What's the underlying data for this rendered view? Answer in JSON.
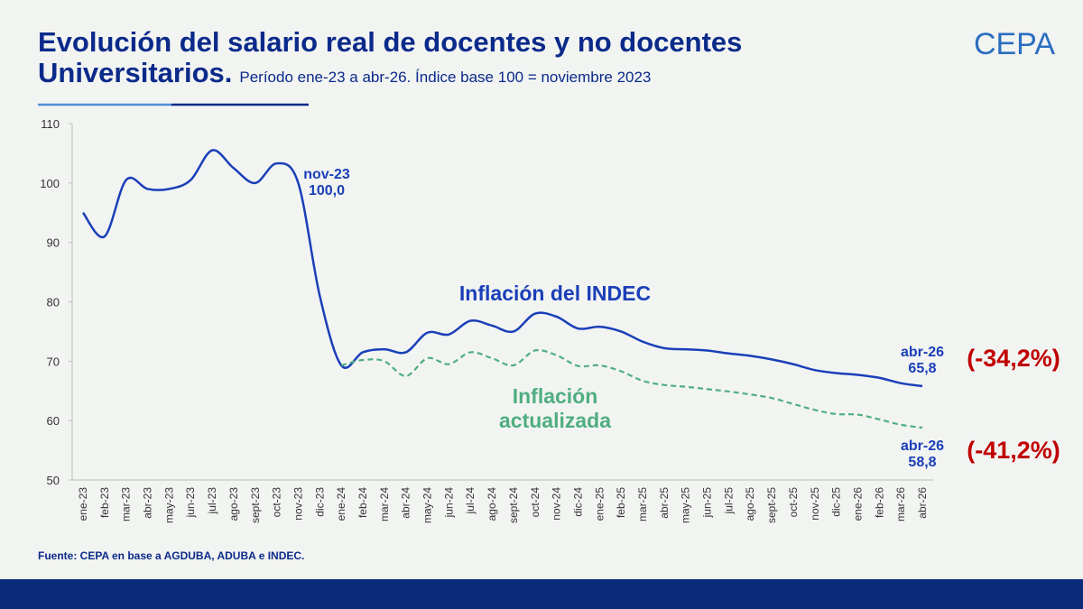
{
  "chart_data": {
    "type": "line",
    "title": "Evolución del salario real de docentes y no docentes",
    "title_line2": "Universitarios.",
    "subtitle": "Período ene-23 a abr-26. Índice base 100 = noviembre 2023",
    "source": "Fuente: CEPA en base a AGDUBA,  ADUBA  e INDEC.",
    "logo": "CEPA",
    "categories": [
      "ene-23",
      "feb-23",
      "mar-23",
      "abr-23",
      "may-23",
      "jun-23",
      "jul-23",
      "ago-23",
      "sept-23",
      "oct-23",
      "nov-23",
      "dic-23",
      "ene-24",
      "feb-24",
      "mar-24",
      "abr-24",
      "may-24",
      "jun-24",
      "jul-24",
      "ago-24",
      "sept-24",
      "oct-24",
      "nov-24",
      "dic-24",
      "ene-25",
      "feb-25",
      "mar-25",
      "abr-25",
      "may-25",
      "jun-25",
      "jul-25",
      "ago-25",
      "sept-25",
      "oct-25",
      "nov-25",
      "dic-25",
      "ene-26",
      "feb-26",
      "mar-26",
      "abr-26"
    ],
    "series": [
      {
        "name": "Inflación del INDEC",
        "color": "#1a3fb8",
        "dashed": false,
        "values": [
          95,
          91,
          100.5,
          99,
          99,
          100.5,
          105.5,
          102.5,
          100,
          103.3,
          100,
          81,
          69.3,
          71.5,
          72,
          71.5,
          74.8,
          74.5,
          76.8,
          76,
          75,
          78,
          77.5,
          75.5,
          75.8,
          75,
          73.3,
          72.2,
          72,
          71.8,
          71.3,
          70.9,
          70.3,
          69.5,
          68.5,
          68,
          67.7,
          67.2,
          66.3,
          65.8
        ]
      },
      {
        "name": "Inflación actualizada",
        "color": "#4fae80",
        "dashed": true,
        "values": [
          null,
          null,
          null,
          null,
          null,
          null,
          null,
          null,
          null,
          null,
          null,
          null,
          69.3,
          70.2,
          70,
          67.5,
          70.5,
          69.5,
          71.5,
          70.5,
          69.3,
          71.8,
          71,
          69.2,
          69.3,
          68.3,
          66.7,
          66,
          65.7,
          65.3,
          64.9,
          64.4,
          63.8,
          62.8,
          61.8,
          61.1,
          61,
          60.2,
          59.3,
          58.8
        ]
      }
    ],
    "annotations": [
      {
        "text": [
          "nov-23",
          "100,0"
        ],
        "color": "#1a3fb8"
      },
      {
        "text": [
          "abr-26",
          "65,8"
        ],
        "color": "#1a3fb8"
      },
      {
        "text": [
          "abr-26",
          "58,8"
        ],
        "color": "#1a3fb8"
      },
      {
        "text": [
          "(-34,2%)"
        ],
        "color": "#c00000"
      },
      {
        "text": [
          "(-41,2%)"
        ],
        "color": "#c00000"
      }
    ],
    "ylim": [
      50,
      110
    ],
    "yticks": [
      50,
      60,
      70,
      80,
      90,
      100,
      110
    ],
    "grid": false
  }
}
